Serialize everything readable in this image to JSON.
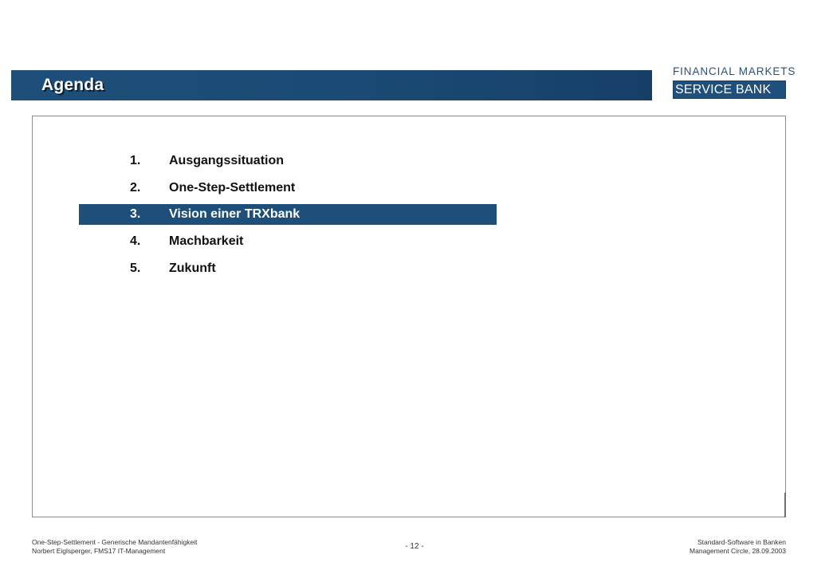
{
  "header": {
    "title": "Agenda",
    "logo_line1": "FINANCIAL MARKETS",
    "logo_line2": "SERVICE BANK"
  },
  "agenda": {
    "items": [
      {
        "number": "1.",
        "label": "Ausgangssituation",
        "active": false
      },
      {
        "number": "2.",
        "label": "One-Step-Settlement",
        "active": false
      },
      {
        "number": "3.",
        "label": "Vision einer TRXbank",
        "active": true
      },
      {
        "number": "4.",
        "label": "Machbarkeit",
        "active": false
      },
      {
        "number": "5.",
        "label": "Zukunft",
        "active": false
      }
    ]
  },
  "footer": {
    "left_line1": "One-Step-Settlement - Generische Mandantenfähigkeit",
    "left_line2": "Norbert Eiglsperger, FMS17 IT-Management",
    "page": "- 12 -",
    "right_line1": "Standard-Software in Banken",
    "right_line2": "Management Circle, 28.09.2003"
  },
  "colors": {
    "accent": "#1d4f7a",
    "logo_text": "#2b4f78"
  }
}
